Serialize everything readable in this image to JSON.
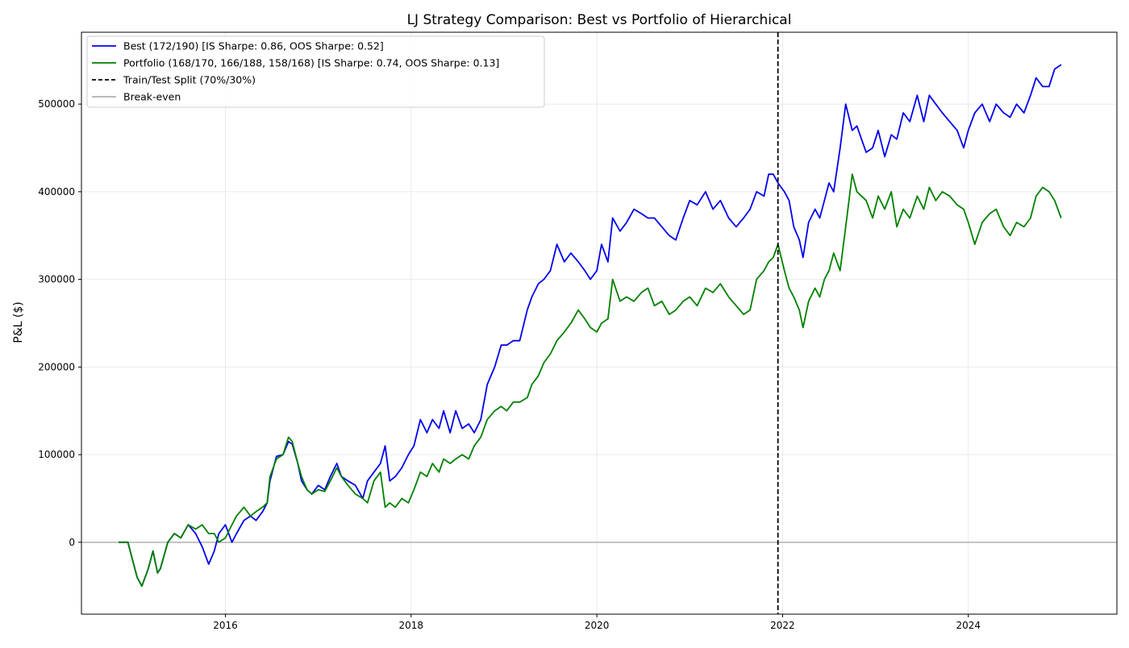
{
  "chart_data": {
    "type": "line",
    "title": "LJ Strategy Comparison: Best vs Portfolio of Hierarchical",
    "xlabel": "",
    "ylabel": "P&L ($)",
    "xlim": [
      2014.45,
      2025.6
    ],
    "ylim": [
      -82000,
      582000
    ],
    "grid": true,
    "legend_position": "top-left",
    "x_ticks": [
      2016,
      2018,
      2020,
      2022,
      2024
    ],
    "x_tick_labels": [
      "2016",
      "2018",
      "2020",
      "2022",
      "2024"
    ],
    "y_ticks": [
      0,
      100000,
      200000,
      300000,
      400000,
      500000
    ],
    "y_tick_labels": [
      "0",
      "100000",
      "200000",
      "300000",
      "400000",
      "500000"
    ],
    "series": [
      {
        "name": "Best (172/190) [IS Sharpe: 0.86, OOS Sharpe: 0.52]",
        "color": "#0000ee",
        "x": [
          2014.85,
          2014.95,
          2015.0,
          2015.05,
          2015.1,
          2015.17,
          2015.22,
          2015.27,
          2015.3,
          2015.38,
          2015.45,
          2015.52,
          2015.6,
          2015.68,
          2015.75,
          2015.82,
          2015.88,
          2015.93,
          2016.0,
          2016.07,
          2016.12,
          2016.2,
          2016.27,
          2016.33,
          2016.4,
          2016.45,
          2016.48,
          2016.55,
          2016.62,
          2016.68,
          2016.72,
          2016.78,
          2016.82,
          2016.88,
          2016.93,
          2017.0,
          2017.07,
          2017.13,
          2017.2,
          2017.25,
          2017.32,
          2017.4,
          2017.48,
          2017.53,
          2017.6,
          2017.67,
          2017.72,
          2017.77,
          2017.83,
          2017.9,
          2017.97,
          2018.03,
          2018.1,
          2018.17,
          2018.23,
          2018.3,
          2018.35,
          2018.42,
          2018.48,
          2018.55,
          2018.62,
          2018.68,
          2018.75,
          2018.82,
          2018.9,
          2018.97,
          2019.03,
          2019.1,
          2019.17,
          2019.25,
          2019.3,
          2019.37,
          2019.43,
          2019.5,
          2019.57,
          2019.65,
          2019.72,
          2019.8,
          2019.87,
          2019.93,
          2020.0,
          2020.05,
          2020.12,
          2020.17,
          2020.25,
          2020.32,
          2020.4,
          2020.48,
          2020.55,
          2020.62,
          2020.7,
          2020.78,
          2020.85,
          2020.93,
          2021.0,
          2021.08,
          2021.17,
          2021.25,
          2021.33,
          2021.42,
          2021.5,
          2021.58,
          2021.65,
          2021.72,
          2021.8,
          2021.85,
          2021.9,
          2021.95,
          2022.02,
          2022.07,
          2022.12,
          2022.18,
          2022.22,
          2022.28,
          2022.35,
          2022.4,
          2022.45,
          2022.5,
          2022.55,
          2022.62,
          2022.68,
          2022.75,
          2022.8,
          2022.85,
          2022.9,
          2022.97,
          2023.03,
          2023.1,
          2023.17,
          2023.23,
          2023.3,
          2023.37,
          2023.45,
          2023.52,
          2023.58,
          2023.65,
          2023.72,
          2023.8,
          2023.88,
          2023.95,
          2024.0,
          2024.07,
          2024.15,
          2024.23,
          2024.3,
          2024.38,
          2024.45,
          2024.52,
          2024.6,
          2024.67,
          2024.73,
          2024.8,
          2024.87,
          2024.93,
          2025.0
        ],
        "y": [
          0,
          0,
          -20000,
          -40000,
          -50000,
          -30000,
          -10000,
          -35000,
          -30000,
          0,
          10000,
          5000,
          20000,
          10000,
          -5000,
          -25000,
          -10000,
          10000,
          20000,
          0,
          10000,
          25000,
          30000,
          25000,
          35000,
          45000,
          70000,
          98000,
          100000,
          115000,
          112000,
          90000,
          70000,
          60000,
          55000,
          65000,
          60000,
          75000,
          90000,
          75000,
          70000,
          65000,
          50000,
          70000,
          80000,
          90000,
          110000,
          70000,
          75000,
          85000,
          100000,
          110000,
          140000,
          125000,
          140000,
          130000,
          150000,
          125000,
          150000,
          130000,
          135000,
          125000,
          140000,
          180000,
          200000,
          225000,
          225000,
          230000,
          230000,
          265000,
          280000,
          295000,
          300000,
          310000,
          340000,
          320000,
          330000,
          320000,
          310000,
          300000,
          310000,
          340000,
          320000,
          370000,
          355000,
          365000,
          380000,
          375000,
          370000,
          370000,
          360000,
          350000,
          345000,
          370000,
          390000,
          385000,
          400000,
          380000,
          390000,
          370000,
          360000,
          370000,
          380000,
          400000,
          395000,
          420000,
          420000,
          410000,
          400000,
          390000,
          360000,
          345000,
          325000,
          365000,
          380000,
          370000,
          390000,
          410000,
          400000,
          450000,
          500000,
          470000,
          475000,
          460000,
          445000,
          450000,
          470000,
          440000,
          465000,
          460000,
          490000,
          480000,
          510000,
          480000,
          510000,
          500000,
          490000,
          480000,
          470000,
          450000,
          470000,
          490000,
          500000,
          480000,
          500000,
          490000,
          485000,
          500000,
          490000,
          510000,
          530000,
          520000,
          520000,
          540000,
          545000
        ]
      },
      {
        "name": "Portfolio (168/170, 166/188, 158/168) [IS Sharpe: 0.74, OOS Sharpe: 0.13]",
        "color": "#008000",
        "x": [
          2014.85,
          2014.95,
          2015.0,
          2015.05,
          2015.1,
          2015.17,
          2015.22,
          2015.27,
          2015.3,
          2015.38,
          2015.45,
          2015.52,
          2015.6,
          2015.68,
          2015.75,
          2015.82,
          2015.88,
          2015.93,
          2016.0,
          2016.07,
          2016.12,
          2016.2,
          2016.27,
          2016.33,
          2016.4,
          2016.45,
          2016.48,
          2016.55,
          2016.62,
          2016.68,
          2016.72,
          2016.78,
          2016.82,
          2016.88,
          2016.93,
          2017.0,
          2017.07,
          2017.13,
          2017.2,
          2017.25,
          2017.32,
          2017.4,
          2017.48,
          2017.53,
          2017.6,
          2017.67,
          2017.72,
          2017.77,
          2017.83,
          2017.9,
          2017.97,
          2018.03,
          2018.1,
          2018.17,
          2018.23,
          2018.3,
          2018.35,
          2018.42,
          2018.48,
          2018.55,
          2018.62,
          2018.68,
          2018.75,
          2018.82,
          2018.9,
          2018.97,
          2019.03,
          2019.1,
          2019.17,
          2019.25,
          2019.3,
          2019.37,
          2019.43,
          2019.5,
          2019.57,
          2019.65,
          2019.72,
          2019.8,
          2019.87,
          2019.93,
          2020.0,
          2020.05,
          2020.12,
          2020.17,
          2020.25,
          2020.32,
          2020.4,
          2020.48,
          2020.55,
          2020.62,
          2020.7,
          2020.78,
          2020.85,
          2020.93,
          2021.0,
          2021.08,
          2021.17,
          2021.25,
          2021.33,
          2021.42,
          2021.5,
          2021.58,
          2021.65,
          2021.72,
          2021.8,
          2021.85,
          2021.9,
          2021.95,
          2022.02,
          2022.07,
          2022.12,
          2022.18,
          2022.22,
          2022.28,
          2022.35,
          2022.4,
          2022.45,
          2022.5,
          2022.55,
          2022.62,
          2022.68,
          2022.75,
          2022.8,
          2022.85,
          2022.9,
          2022.97,
          2023.03,
          2023.1,
          2023.17,
          2023.23,
          2023.3,
          2023.37,
          2023.45,
          2023.52,
          2023.58,
          2023.65,
          2023.72,
          2023.8,
          2023.88,
          2023.95,
          2024.0,
          2024.07,
          2024.15,
          2024.23,
          2024.3,
          2024.38,
          2024.45,
          2024.52,
          2024.6,
          2024.67,
          2024.73,
          2024.8,
          2024.87,
          2024.93,
          2025.0
        ],
        "y": [
          0,
          0,
          -20000,
          -40000,
          -50000,
          -30000,
          -10000,
          -35000,
          -30000,
          0,
          10000,
          5000,
          20000,
          15000,
          20000,
          10000,
          10000,
          0,
          5000,
          20000,
          30000,
          40000,
          30000,
          35000,
          40000,
          45000,
          75000,
          95000,
          100000,
          120000,
          115000,
          90000,
          75000,
          60000,
          55000,
          60000,
          58000,
          70000,
          85000,
          75000,
          65000,
          55000,
          50000,
          45000,
          70000,
          80000,
          40000,
          45000,
          40000,
          50000,
          45000,
          60000,
          80000,
          75000,
          90000,
          80000,
          95000,
          90000,
          95000,
          100000,
          95000,
          110000,
          120000,
          140000,
          150000,
          155000,
          150000,
          160000,
          160000,
          165000,
          180000,
          190000,
          205000,
          215000,
          230000,
          240000,
          250000,
          265000,
          255000,
          245000,
          240000,
          250000,
          255000,
          300000,
          275000,
          280000,
          275000,
          285000,
          290000,
          270000,
          275000,
          260000,
          265000,
          275000,
          280000,
          270000,
          290000,
          285000,
          295000,
          280000,
          270000,
          260000,
          265000,
          300000,
          310000,
          320000,
          325000,
          340000,
          310000,
          290000,
          280000,
          265000,
          245000,
          275000,
          290000,
          280000,
          300000,
          310000,
          330000,
          310000,
          360000,
          420000,
          400000,
          395000,
          390000,
          370000,
          395000,
          380000,
          400000,
          360000,
          380000,
          370000,
          395000,
          380000,
          405000,
          390000,
          400000,
          395000,
          385000,
          380000,
          365000,
          340000,
          365000,
          375000,
          380000,
          360000,
          350000,
          365000,
          360000,
          370000,
          395000,
          405000,
          400000,
          390000,
          370000
        ]
      }
    ],
    "split": {
      "name": "Train/Test Split (70%/30%)",
      "x": 2021.95,
      "color": "#000000"
    },
    "baseline": {
      "name": "Break-even",
      "y": 0,
      "color": "#b0b0b0"
    }
  }
}
